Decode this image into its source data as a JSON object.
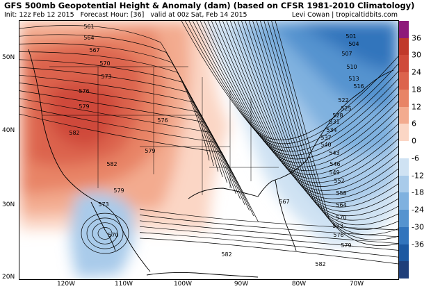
{
  "header": {
    "title": "GFS 500mb Geopotential Height & Anomaly (dam) (based on CFSR 1981-2010 Climatology)",
    "init": "Init: 12z Feb 12 2015",
    "forecast_hour": "Forecast Hour: [36]",
    "valid": "valid at 00z Sat, Feb 14 2015",
    "credit": "Levi Cowan | tropicaltidbits.com"
  },
  "axes": {
    "lat_labels": [
      "50N",
      "40N",
      "30N",
      "20N"
    ],
    "lon_labels": [
      "120W",
      "110W",
      "100W",
      "90W",
      "80W",
      "70W"
    ]
  },
  "colorbar": {
    "labels": [
      "36",
      "30",
      "24",
      "18",
      "12",
      "6",
      "0",
      "-6",
      "-12",
      "-18",
      "-24",
      "-30",
      "-36"
    ],
    "colors": [
      "#8e1a7a",
      "#c0392b",
      "#cf4a3a",
      "#dc634d",
      "#e88466",
      "#f3ab8f",
      "#fbd6c5",
      "#ffffff",
      "#cfe2f3",
      "#a9cbea",
      "#7fb1df",
      "#5593cf",
      "#3274bc",
      "#1c58a1",
      "#1f3f7a"
    ]
  },
  "contour_labels": [
    "561",
    "564",
    "567",
    "570",
    "573",
    "576",
    "579",
    "582",
    "576",
    "579",
    "582",
    "579",
    "573",
    "570",
    "501",
    "504",
    "507",
    "510",
    "513",
    "516",
    "522",
    "525",
    "528",
    "531",
    "534",
    "537",
    "540",
    "543",
    "546",
    "549",
    "552",
    "558",
    "564",
    "570",
    "573",
    "576",
    "579",
    "567",
    "582",
    "582"
  ]
}
